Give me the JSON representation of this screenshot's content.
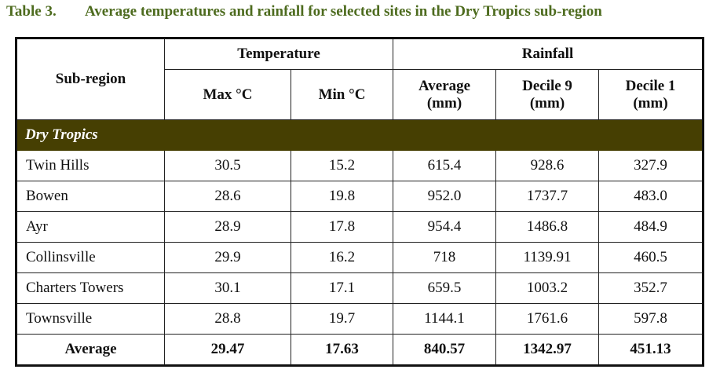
{
  "caption": {
    "number": "Table 3.",
    "title": "Average temperatures and rainfall for selected sites in the Dry Tropics sub-region"
  },
  "header": {
    "subregion": "Sub-region",
    "temperature": "Temperature",
    "rainfall": "Rainfall",
    "max": "Max °C",
    "min": "Min °C",
    "average_l1": "Average",
    "average_l2": "(mm)",
    "decile9_l1": "Decile 9",
    "decile9_l2": "(mm)",
    "decile1_l1": "Decile 1",
    "decile1_l2": "(mm)"
  },
  "section": "Dry Tropics",
  "rows": [
    [
      "Twin Hills",
      "30.5",
      "15.2",
      "615.4",
      "928.6",
      "327.9"
    ],
    [
      "Bowen",
      "28.6",
      "19.8",
      "952.0",
      "1737.7",
      "483.0"
    ],
    [
      "Ayr",
      "28.9",
      "17.8",
      "954.4",
      "1486.8",
      "484.9"
    ],
    [
      "Collinsville",
      "29.9",
      "16.2",
      "718",
      "1139.91",
      "460.5"
    ],
    [
      "Charters Towers",
      "30.1",
      "17.1",
      "659.5",
      "1003.2",
      "352.7"
    ],
    [
      "Townsville",
      "28.8",
      "19.7",
      "1144.1",
      "1761.6",
      "597.8"
    ]
  ],
  "average": [
    "Average",
    "29.47",
    "17.63",
    "840.57",
    "1342.97",
    "451.13"
  ],
  "colors": {
    "caption": "#4d6b1e",
    "band": "#463f02"
  }
}
